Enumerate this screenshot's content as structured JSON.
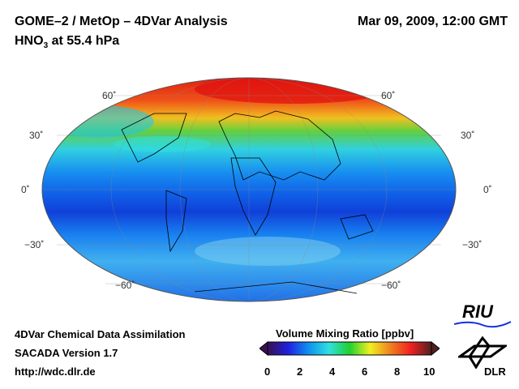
{
  "header": {
    "title": "GOME–2 / MetOp – 4DVar Analysis",
    "species": "HNO",
    "species_sub": "3",
    "level": " at 55.4 hPa",
    "datetime": "Mar 09, 2009, 12:00 GMT"
  },
  "map": {
    "projection": "Mollweide global",
    "lat_labels_left": [
      "60˚",
      "30˚",
      "0˚",
      "−30˚",
      "−60˚"
    ],
    "lat_labels_right": [
      "60˚",
      "30˚",
      "0˚",
      "−30˚",
      "−60˚"
    ]
  },
  "footer": {
    "line1": "4DVar Chemical Data Assimilation",
    "line2": "SACADA Version 1.7",
    "line3": "http://wdc.dlr.de"
  },
  "colorbar": {
    "title": "Volume Mixing Ratio [ppbv]",
    "range": [
      0,
      10
    ],
    "ticks": [
      "0",
      "2",
      "4",
      "6",
      "8",
      "10"
    ],
    "colors": [
      "#3a1050",
      "#2020e0",
      "#1090f0",
      "#30e0e0",
      "#20d030",
      "#f0f020",
      "#f08020",
      "#f02020",
      "#502020"
    ]
  },
  "logos": {
    "riu": "RIU",
    "dlr": "DLR"
  }
}
